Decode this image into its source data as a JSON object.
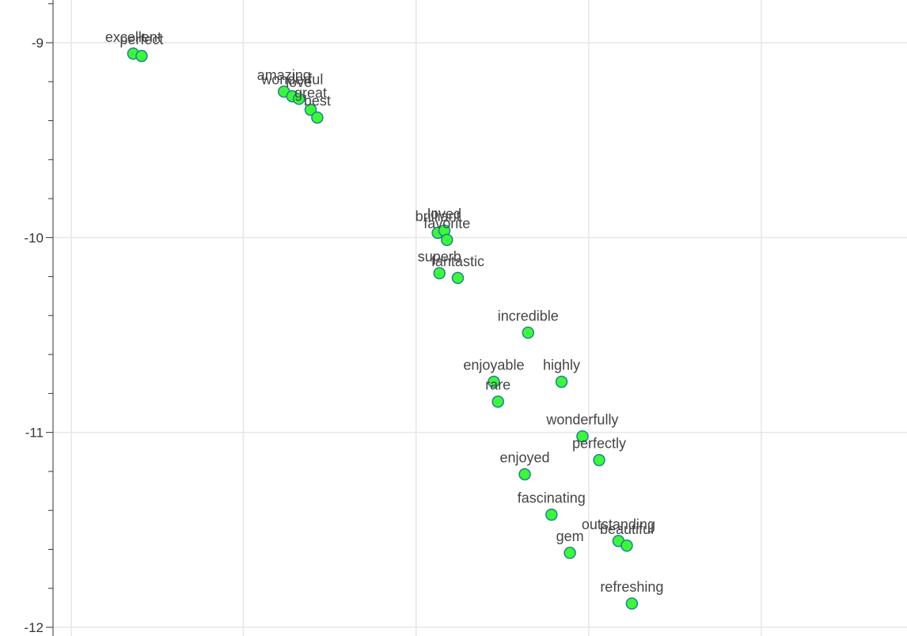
{
  "chart_data": {
    "type": "scatter",
    "title": "",
    "xlabel": "",
    "ylabel": "",
    "ylim": [
      -12,
      -8.8
    ],
    "xlim": [
      0,
      1
    ],
    "y_ticks_major": [
      -9,
      -10,
      -11,
      -12
    ],
    "y_tick_labels": [
      "-9",
      "-10",
      "-11",
      "-12"
    ],
    "grid": true,
    "point_fill": "#33ff33",
    "point_stroke": "#2a7a9a",
    "points": [
      {
        "label": "excellent",
        "x": 0.0931,
        "y": -9.056
      },
      {
        "label": "perfect",
        "x": 0.1029,
        "y": -9.068
      },
      {
        "label": "amazing",
        "x": 0.2697,
        "y": -9.251
      },
      {
        "label": "wonderful",
        "x": 0.2795,
        "y": -9.275
      },
      {
        "label": "love",
        "x": 0.2873,
        "y": -9.288
      },
      {
        "label": "great",
        "x": 0.301,
        "y": -9.344
      },
      {
        "label": "best",
        "x": 0.3088,
        "y": -9.384
      },
      {
        "label": "brilliant",
        "x": 0.45,
        "y": -9.976
      },
      {
        "label": "loved",
        "x": 0.4578,
        "y": -9.964
      },
      {
        "label": "favorite",
        "x": 0.4608,
        "y": -10.012
      },
      {
        "label": "superb",
        "x": 0.452,
        "y": -10.183
      },
      {
        "label": "fantastic",
        "x": 0.4735,
        "y": -10.207
      },
      {
        "label": "incredible",
        "x": 0.5559,
        "y": -10.488
      },
      {
        "label": "enjoyable",
        "x": 0.5157,
        "y": -10.74
      },
      {
        "label": "highly",
        "x": 0.5951,
        "y": -10.74
      },
      {
        "label": "rare",
        "x": 0.5206,
        "y": -10.842
      },
      {
        "label": "wonderfully",
        "x": 0.6196,
        "y": -11.02
      },
      {
        "label": "perfectly",
        "x": 0.6392,
        "y": -11.142
      },
      {
        "label": "enjoyed",
        "x": 0.552,
        "y": -11.215
      },
      {
        "label": "fascinating",
        "x": 0.5833,
        "y": -11.422
      },
      {
        "label": "outstanding",
        "x": 0.6618,
        "y": -11.557
      },
      {
        "label": "beautiful",
        "x": 0.6716,
        "y": -11.581
      },
      {
        "label": "gem",
        "x": 0.6049,
        "y": -11.618
      },
      {
        "label": "refreshing",
        "x": 0.6775,
        "y": -11.878
      }
    ]
  }
}
